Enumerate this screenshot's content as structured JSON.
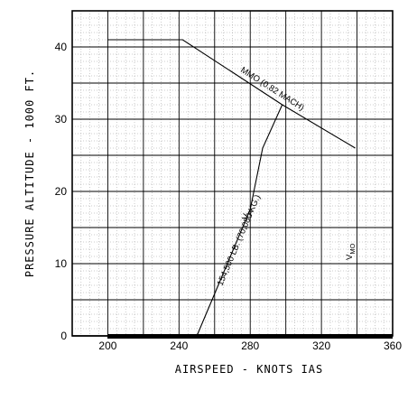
{
  "chart_data": {
    "type": "line",
    "title": "",
    "xlabel": "AIRSPEED - KNOTS IAS",
    "ylabel": "PRESSURE ALTITUDE - 1000 FT.",
    "xlim": [
      180,
      360
    ],
    "ylim": [
      0,
      45
    ],
    "x_ticks": [
      "200",
      "240",
      "280",
      "320",
      "360"
    ],
    "y_ticks": [
      "0",
      "10",
      "20",
      "30",
      "40"
    ],
    "grid": true,
    "series": [
      {
        "name": "MMO (0.82 MACH)",
        "x": [
          200,
          242,
          298,
          339
        ],
        "y": [
          41,
          41,
          32,
          26
        ]
      },
      {
        "name": "VA",
        "x": [
          250,
          280,
          287,
          298
        ],
        "y": [
          0,
          17.5,
          26,
          32
        ]
      }
    ],
    "annotations": {
      "mmo": "MMO (0.82 MACH)",
      "va_v": "V",
      "va_sub": "A",
      "weight": "154,500 LB. (70,080 KG.)",
      "vmo_v": "V",
      "vmo_sub": "MO"
    }
  }
}
